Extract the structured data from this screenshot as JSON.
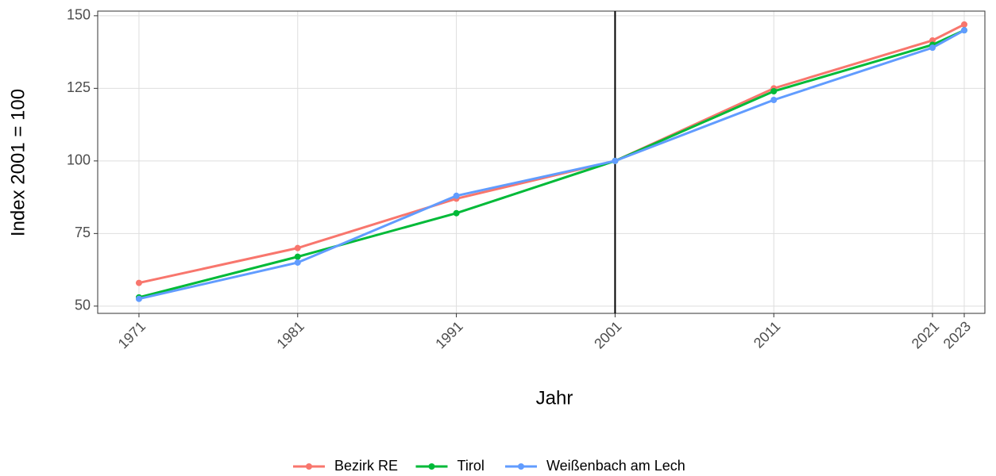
{
  "chart_data": {
    "type": "line",
    "x_label": "Jahr",
    "y_label": "Index 2001 = 100",
    "x": [
      1971,
      1981,
      1991,
      2001,
      2011,
      2021,
      2023
    ],
    "series": [
      {
        "name": "Bezirk RE",
        "color": "#F8766D",
        "values": [
          58,
          70,
          87,
          100,
          125,
          141.5,
          147
        ]
      },
      {
        "name": "Tirol",
        "color": "#00BA38",
        "values": [
          53,
          67,
          82,
          100,
          124,
          140,
          145
        ]
      },
      {
        "name": "Weißenbach am Lech",
        "color": "#619CFF",
        "values": [
          52.5,
          65,
          88,
          100,
          121,
          139,
          145
        ]
      }
    ],
    "xlim": [
      1968.4,
      2024.3
    ],
    "ylim": [
      47.5,
      151.6
    ],
    "xticks": [
      1971,
      1981,
      1991,
      2001,
      2011,
      2021,
      2023
    ],
    "yticks": [
      50,
      75,
      100,
      125,
      150
    ],
    "vline": 2001,
    "grid": true,
    "legend": "bottom"
  }
}
